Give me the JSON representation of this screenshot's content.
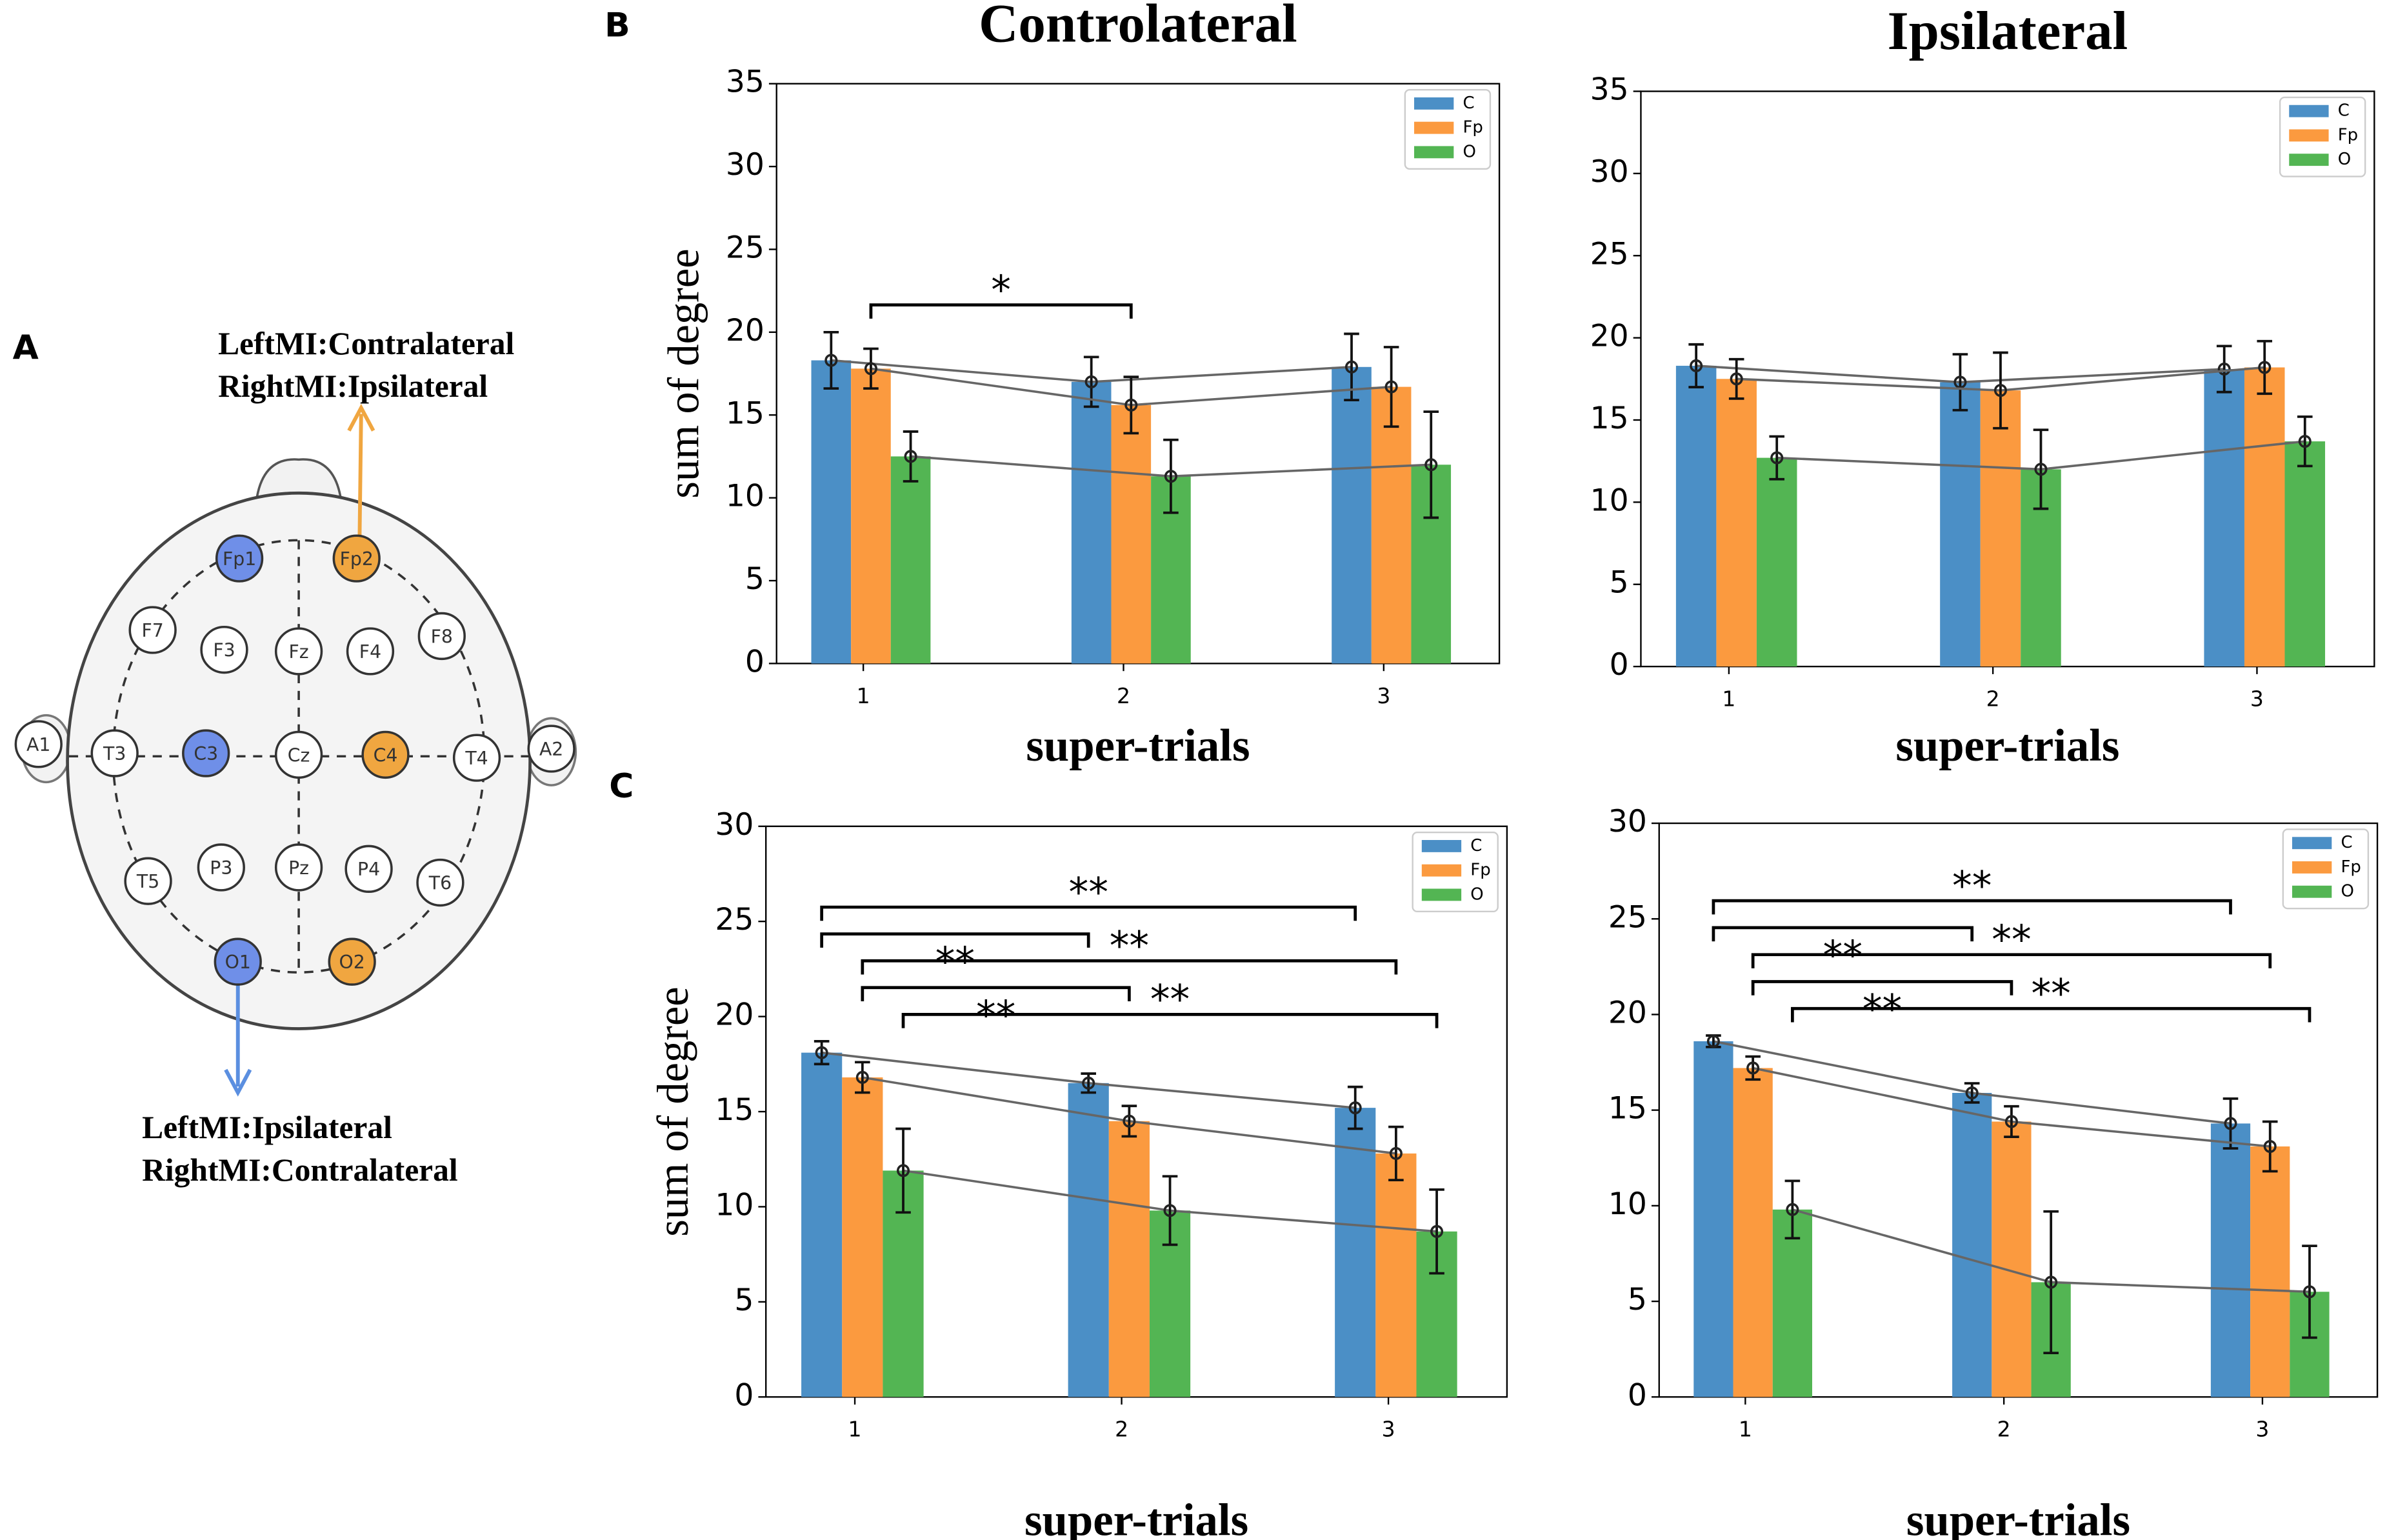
{
  "panel_labels": [
    "A",
    "B",
    "C"
  ],
  "diagram": {
    "top_text": [
      "LeftMI:Contralateral",
      "RightMI:Ipsilateral"
    ],
    "bottom_text": [
      "LeftMI:Ipsilateral",
      "RightMI:Contralateral"
    ],
    "electrodes": [
      {
        "label": "Fp1",
        "color": "#6f8fe8"
      },
      {
        "label": "Fp2",
        "color": "#f0a640"
      },
      {
        "label": "F7"
      },
      {
        "label": "F3"
      },
      {
        "label": "Fz"
      },
      {
        "label": "F4"
      },
      {
        "label": "F8"
      },
      {
        "label": "A1"
      },
      {
        "label": "T3"
      },
      {
        "label": "C3",
        "color": "#6f8fe8"
      },
      {
        "label": "Cz"
      },
      {
        "label": "C4",
        "color": "#f0a640"
      },
      {
        "label": "T4"
      },
      {
        "label": "A2"
      },
      {
        "label": "T5"
      },
      {
        "label": "P3"
      },
      {
        "label": "Pz"
      },
      {
        "label": "P4"
      },
      {
        "label": "T6"
      },
      {
        "label": "O1",
        "color": "#6f8fe8"
      },
      {
        "label": "O2",
        "color": "#f0a640"
      }
    ]
  },
  "chart_data": [
    {
      "type": "bar",
      "title": "Controlateral",
      "ylabel": "sum of degree",
      "xlabel": "super-trials",
      "categories": [
        "1",
        "2",
        "3"
      ],
      "series": [
        {
          "name": "C",
          "color": "#4b8fc6",
          "values": [
            18.3,
            17.0,
            17.9
          ],
          "errors": [
            1.7,
            1.5,
            2.0
          ]
        },
        {
          "name": "Fp",
          "color": "#fb9a3f",
          "values": [
            17.8,
            15.6,
            16.7
          ],
          "errors": [
            1.2,
            1.7,
            2.4
          ]
        },
        {
          "name": "O",
          "color": "#53b553",
          "values": [
            12.5,
            11.3,
            12.0
          ],
          "errors": [
            1.5,
            2.2,
            3.2
          ]
        }
      ],
      "ylim": [
        0,
        35
      ],
      "yticks": [
        0,
        5,
        10,
        15,
        20,
        25,
        30,
        35
      ],
      "legend": "upper right",
      "comparisons": [
        {
          "series": 1,
          "categories": [
            0,
            1
          ],
          "label": "*"
        }
      ]
    },
    {
      "type": "bar",
      "title": "Ipsilateral",
      "xlabel": "super-trials",
      "categories": [
        "1",
        "2",
        "3"
      ],
      "series": [
        {
          "name": "C",
          "color": "#4b8fc6",
          "values": [
            18.3,
            17.3,
            18.1
          ],
          "errors": [
            1.3,
            1.7,
            1.4
          ]
        },
        {
          "name": "Fp",
          "color": "#fb9a3f",
          "values": [
            17.5,
            16.8,
            18.2
          ],
          "errors": [
            1.2,
            2.3,
            1.6
          ]
        },
        {
          "name": "O",
          "color": "#53b553",
          "values": [
            12.7,
            12.0,
            13.7
          ],
          "errors": [
            1.3,
            2.4,
            1.5
          ]
        }
      ],
      "ylim": [
        0,
        35
      ],
      "yticks": [
        0,
        5,
        10,
        15,
        20,
        25,
        30,
        35
      ],
      "legend": "upper right",
      "comparisons": []
    },
    {
      "type": "bar",
      "ylabel": "sum of degree",
      "xlabel": "super-trials",
      "categories": [
        "1",
        "2",
        "3"
      ],
      "series": [
        {
          "name": "C",
          "color": "#4b8fc6",
          "values": [
            18.1,
            16.5,
            15.2
          ],
          "errors": [
            0.6,
            0.5,
            1.1
          ]
        },
        {
          "name": "Fp",
          "color": "#fb9a3f",
          "values": [
            16.8,
            14.5,
            12.8
          ],
          "errors": [
            0.8,
            0.8,
            1.4
          ]
        },
        {
          "name": "O",
          "color": "#53b553",
          "values": [
            11.9,
            9.8,
            8.7
          ],
          "errors": [
            2.2,
            1.8,
            2.2
          ]
        }
      ],
      "ylim": [
        0,
        30
      ],
      "yticks": [
        0,
        5,
        10,
        15,
        20,
        25,
        30
      ],
      "legend": "upper right",
      "comparisons": [
        {
          "series": 0,
          "categories": [
            0,
            2
          ],
          "label": "**"
        },
        {
          "series": 0,
          "categories": [
            0,
            1
          ],
          "label": "**"
        },
        {
          "series": 1,
          "categories": [
            0,
            2
          ],
          "label": "**"
        },
        {
          "series": 1,
          "categories": [
            0,
            1
          ],
          "label": "**"
        },
        {
          "series": 2,
          "categories": [
            0,
            2
          ],
          "label": "**"
        }
      ]
    },
    {
      "type": "bar",
      "xlabel": "super-trials",
      "categories": [
        "1",
        "2",
        "3"
      ],
      "series": [
        {
          "name": "C",
          "color": "#4b8fc6",
          "values": [
            18.6,
            15.9,
            14.3
          ],
          "errors": [
            0.3,
            0.5,
            1.3
          ]
        },
        {
          "name": "Fp",
          "color": "#fb9a3f",
          "values": [
            17.2,
            14.4,
            13.1
          ],
          "errors": [
            0.6,
            0.8,
            1.3
          ]
        },
        {
          "name": "O",
          "color": "#53b553",
          "values": [
            9.8,
            6.0,
            5.5
          ],
          "errors": [
            1.5,
            3.7,
            2.4
          ]
        }
      ],
      "ylim": [
        0,
        30
      ],
      "yticks": [
        0,
        5,
        10,
        15,
        20,
        25,
        30
      ],
      "legend": "upper right",
      "comparisons": [
        {
          "series": 0,
          "categories": [
            0,
            2
          ],
          "label": "**"
        },
        {
          "series": 0,
          "categories": [
            0,
            1
          ],
          "label": "**"
        },
        {
          "series": 1,
          "categories": [
            0,
            2
          ],
          "label": "**"
        },
        {
          "series": 1,
          "categories": [
            0,
            1
          ],
          "label": "**"
        },
        {
          "series": 2,
          "categories": [
            0,
            2
          ],
          "label": "**"
        }
      ]
    }
  ]
}
